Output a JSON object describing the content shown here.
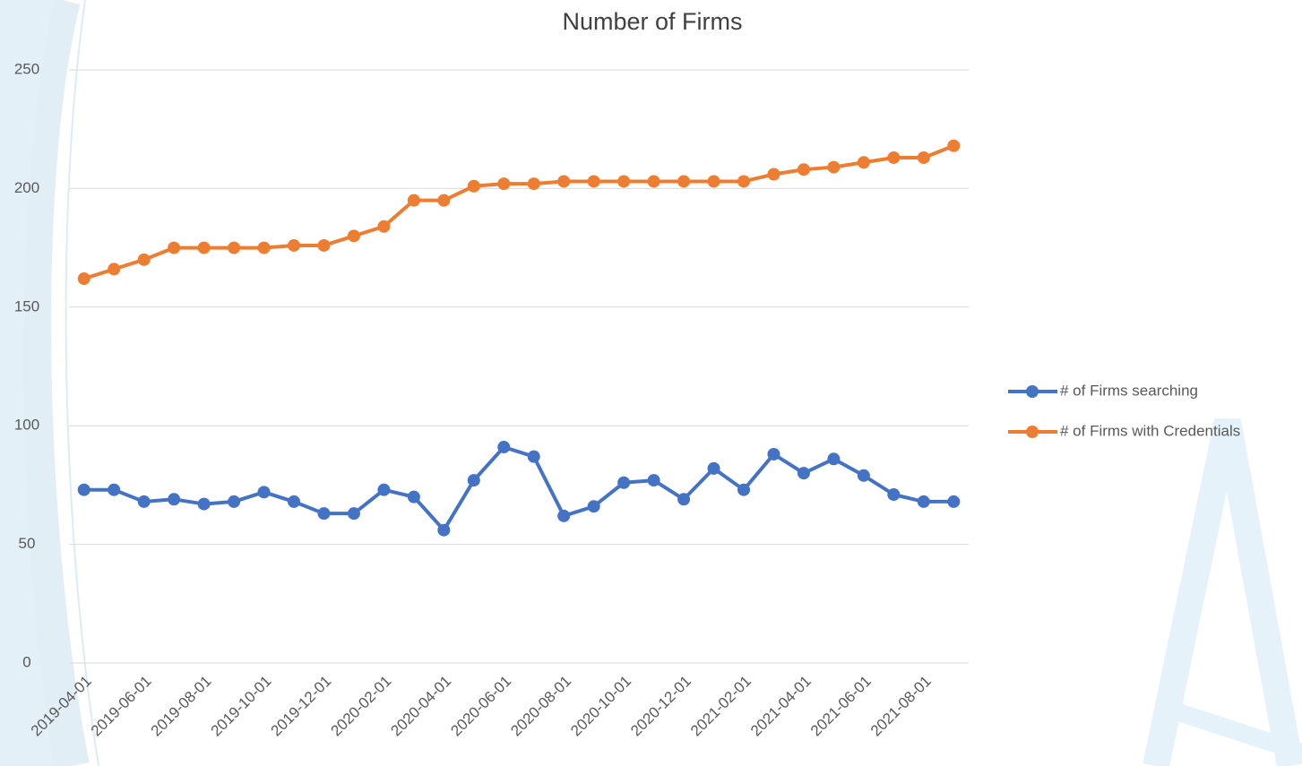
{
  "chart_data": {
    "type": "line",
    "title": "Number of Firms",
    "categories": [
      "2019-04-01",
      null,
      "2019-06-01",
      null,
      "2019-08-01",
      null,
      "2019-10-01",
      null,
      "2019-12-01",
      null,
      "2020-02-01",
      null,
      "2020-04-01",
      null,
      "2020-06-01",
      null,
      "2020-08-01",
      null,
      "2020-10-01",
      null,
      "2020-12-01",
      null,
      "2021-02-01",
      null,
      "2021-04-01",
      null,
      "2021-06-01",
      null,
      "2021-08-01",
      null
    ],
    "series": [
      {
        "name": "# of Firms searching",
        "color": "#4472c4",
        "values": [
          73,
          73,
          68,
          69,
          67,
          68,
          72,
          68,
          63,
          63,
          73,
          70,
          56,
          77,
          91,
          87,
          62,
          66,
          76,
          77,
          69,
          82,
          73,
          88,
          80,
          86,
          79,
          71,
          68,
          68
        ]
      },
      {
        "name": "# of Firms with Credentials",
        "color": "#ed7d31",
        "values": [
          162,
          166,
          170,
          175,
          175,
          175,
          175,
          176,
          176,
          180,
          184,
          195,
          195,
          201,
          202,
          202,
          203,
          203,
          203,
          203,
          203,
          203,
          203,
          206,
          208,
          209,
          211,
          213,
          213,
          218
        ]
      }
    ],
    "ylim": [
      0,
      250
    ],
    "yticks": [
      0,
      50,
      100,
      150,
      200,
      250
    ],
    "grid": true,
    "legend": "right"
  }
}
